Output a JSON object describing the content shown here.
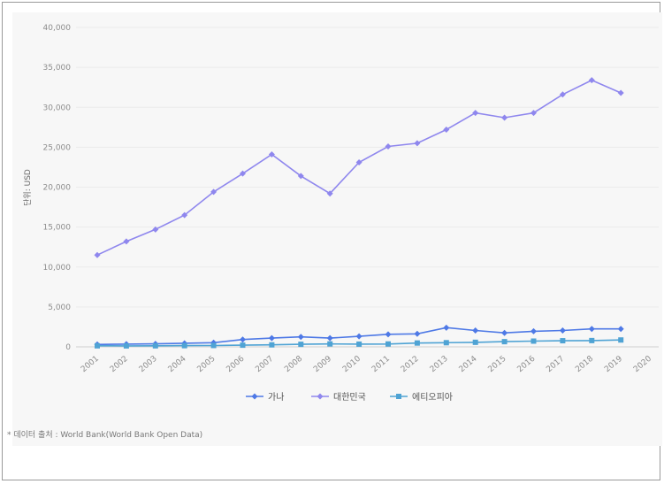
{
  "chart_data": {
    "type": "line",
    "title": "",
    "ylabel": "단위: USD",
    "xlabel": "",
    "categories": [
      "2001",
      "2002",
      "2003",
      "2004",
      "2005",
      "2006",
      "2007",
      "2008",
      "2009",
      "2010",
      "2011",
      "2012",
      "2013",
      "2014",
      "2015",
      "2016",
      "2017",
      "2018",
      "2019",
      "2020"
    ],
    "ylim": [
      0,
      40000
    ],
    "yticks": [
      0,
      5000,
      10000,
      15000,
      20000,
      25000,
      30000,
      35000,
      40000
    ],
    "ytick_labels": [
      "0",
      "5,000",
      "10,000",
      "15,000",
      "20,000",
      "25,000",
      "30,000",
      "35,000",
      "40,000"
    ],
    "grid": true,
    "legend_position": "bottom",
    "series": [
      {
        "name": "가나",
        "color": "#4e79e6",
        "marker": "diamond",
        "values": [
          300,
          340,
          380,
          450,
          520,
          920,
          1100,
          1250,
          1100,
          1320,
          1570,
          1630,
          2400,
          2050,
          1750,
          1950,
          2050,
          2250,
          2250,
          null
        ]
      },
      {
        "name": "대한민국",
        "color": "#8f87ee",
        "marker": "diamond",
        "values": [
          11500,
          13200,
          14700,
          16500,
          19400,
          21700,
          24100,
          21400,
          19200,
          23100,
          25100,
          25500,
          27200,
          29300,
          28700,
          29300,
          31600,
          33400,
          31800,
          null
        ]
      },
      {
        "name": "에티오피아",
        "color": "#4fa3d4",
        "marker": "square",
        "values": [
          130,
          120,
          130,
          150,
          170,
          210,
          250,
          320,
          370,
          340,
          360,
          480,
          520,
          570,
          650,
          720,
          770,
          790,
          860,
          null
        ]
      }
    ],
    "source": "* 데이터 출처 : World Bank(World Bank Open Data)"
  }
}
